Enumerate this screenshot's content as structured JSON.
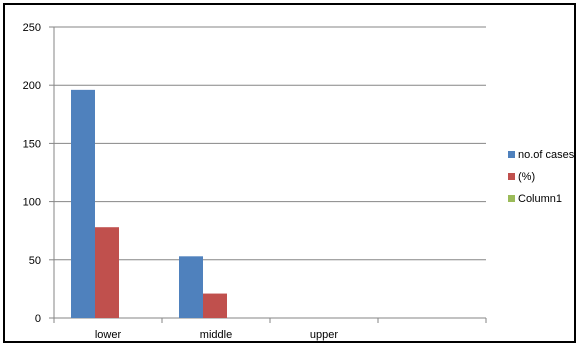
{
  "chart_data": {
    "type": "bar",
    "categories": [
      "lower",
      "middle",
      "upper",
      ""
    ],
    "series": [
      {
        "name": "no.of cases",
        "color": "#4F81BD",
        "values": [
          196,
          53,
          0,
          0
        ]
      },
      {
        "name": "(%)",
        "color": "#C0504D",
        "values": [
          78,
          21,
          0,
          0
        ]
      },
      {
        "name": "Column1",
        "color": "#9BBB59",
        "values": [
          0,
          0,
          0,
          0
        ]
      }
    ],
    "ylim": [
      0,
      250
    ],
    "yticks": [
      "0",
      "50",
      "100",
      "150",
      "200",
      "250"
    ],
    "grid": true,
    "legend_position": "right",
    "title": "",
    "xlabel": "",
    "ylabel": ""
  }
}
